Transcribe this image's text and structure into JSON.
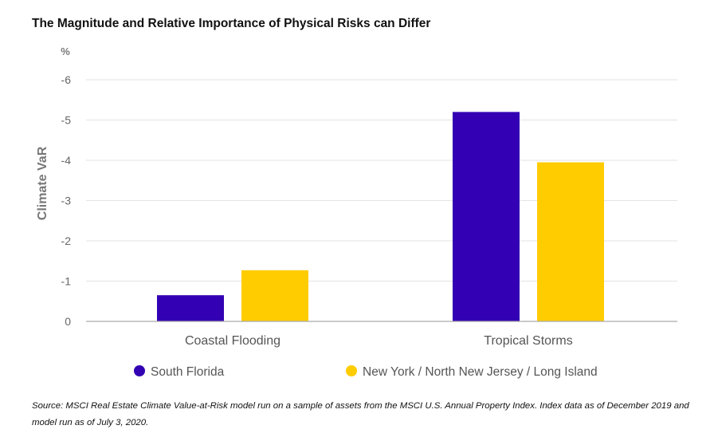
{
  "title": "The Magnitude and Relative Importance of Physical Risks can Differ",
  "source": "Source: MSCI Real Estate Climate Value-at-Risk model run on a sample of assets from the MSCI U.S. Annual Property Index. Index data as of December 2019 and model run as of July 3, 2020.",
  "chart_data": {
    "type": "bar",
    "categories": [
      "Coastal Flooding",
      "Tropical Storms"
    ],
    "series": [
      {
        "name": "South Florida",
        "values": [
          -0.65,
          -5.2
        ],
        "color": "#3300b3"
      },
      {
        "name": "New York / North New Jersey / Long Island",
        "values": [
          -1.27,
          -3.95
        ],
        "color": "#ffcc00"
      }
    ],
    "ylabel": "Climate VaR",
    "unit": "%",
    "ylim": [
      0,
      -6
    ],
    "yticks": [
      0,
      -1,
      -2,
      -3,
      -4,
      -5,
      -6
    ],
    "ytick_labels": [
      "0",
      "-1",
      "-2",
      "-3",
      "-4",
      "-5",
      "-6"
    ],
    "grid": true,
    "legend": "bottom"
  }
}
